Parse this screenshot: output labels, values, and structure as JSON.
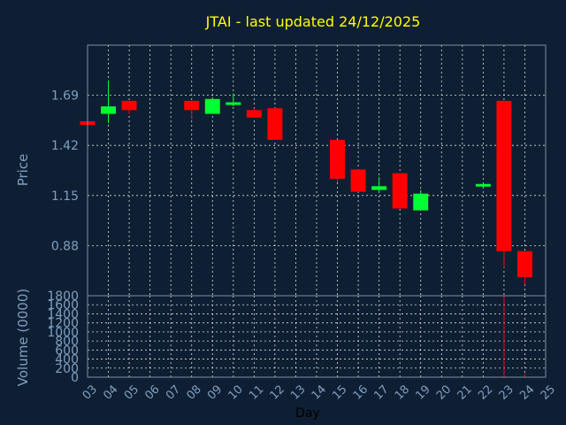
{
  "chart_data": {
    "type": "candlestick",
    "title": "JTAI - last updated 24/12/2025",
    "xlabel": "Day",
    "ylabel": "Price",
    "volume_label": "Volume (0000)",
    "x_ticks": [
      "03",
      "04",
      "05",
      "06",
      "07",
      "08",
      "09",
      "10",
      "11",
      "12",
      "13",
      "14",
      "15",
      "16",
      "17",
      "18",
      "19",
      "20",
      "21",
      "22",
      "23",
      "24",
      "25"
    ],
    "xlim": [
      3,
      25
    ],
    "price_ticks": [
      "0.88",
      "1.15",
      "1.42",
      "1.69"
    ],
    "price_tick_values": [
      0.88,
      1.15,
      1.42,
      1.69
    ],
    "ylim_price": [
      0.61,
      1.96
    ],
    "volume_ticks": [
      "0",
      "200",
      "400",
      "600",
      "800",
      "1000",
      "1200",
      "1400",
      "1600",
      "1800"
    ],
    "ylim_volume": [
      0,
      1800
    ],
    "grid": true,
    "candles": [
      {
        "day": 3,
        "open": 1.55,
        "high": 1.55,
        "low": 1.53,
        "close": 1.53,
        "volume": 0
      },
      {
        "day": 4,
        "open": 1.59,
        "high": 1.77,
        "low": 1.54,
        "close": 1.63,
        "volume": 2
      },
      {
        "day": 5,
        "open": 1.66,
        "high": 1.66,
        "low": 1.59,
        "close": 1.61,
        "volume": 2
      },
      {
        "day": 8,
        "open": 1.66,
        "high": 1.66,
        "low": 1.56,
        "close": 1.61,
        "volume": 3
      },
      {
        "day": 9,
        "open": 1.59,
        "high": 1.68,
        "low": 1.59,
        "close": 1.67,
        "volume": 2
      },
      {
        "day": 10,
        "open": 1.64,
        "high": 1.7,
        "low": 1.63,
        "close": 1.65,
        "volume": 2
      },
      {
        "day": 11,
        "open": 1.61,
        "high": 1.62,
        "low": 1.57,
        "close": 1.57,
        "volume": 2
      },
      {
        "day": 12,
        "open": 1.62,
        "high": 1.62,
        "low": 1.45,
        "close": 1.45,
        "volume": 4
      },
      {
        "day": 15,
        "open": 1.45,
        "high": 1.45,
        "low": 1.22,
        "close": 1.24,
        "volume": 4
      },
      {
        "day": 16,
        "open": 1.29,
        "high": 1.29,
        "low": 1.17,
        "close": 1.17,
        "volume": 3
      },
      {
        "day": 17,
        "open": 1.18,
        "high": 1.25,
        "low": 1.17,
        "close": 1.2,
        "volume": 3
      },
      {
        "day": 18,
        "open": 1.27,
        "high": 1.27,
        "low": 1.08,
        "close": 1.08,
        "volume": 4
      },
      {
        "day": 19,
        "open": 1.07,
        "high": 1.18,
        "low": 1.07,
        "close": 1.16,
        "volume": 3
      },
      {
        "day": 22,
        "open": 1.2,
        "high": 1.21,
        "low": 1.19,
        "close": 1.21,
        "volume": 2
      },
      {
        "day": 23,
        "open": 1.66,
        "high": 1.66,
        "low": 0.76,
        "close": 0.85,
        "volume": 1800
      },
      {
        "day": 24,
        "open": 0.85,
        "high": 0.85,
        "low": 0.67,
        "close": 0.71,
        "volume": 80
      }
    ],
    "colors": {
      "up": "#00ff33",
      "down": "#ff0000",
      "background": "#0f1f33",
      "title": "#ffff00",
      "axis_text": "#7f9fc0",
      "grid": "#ffffff"
    }
  }
}
